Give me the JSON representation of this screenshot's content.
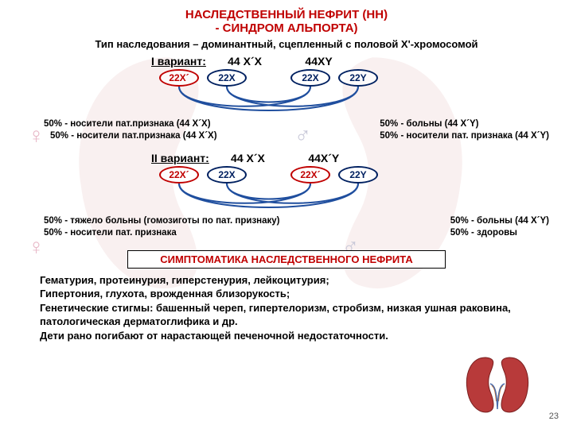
{
  "title1": "НАСЛЕДСТВЕННЫЙ НЕФРИТ (НН)",
  "title2": "- СИНДРОМ АЛЬПОРТА)",
  "subtitle": "Тип наследования – доминантный, сцепленный с половой Х'-хромосомой",
  "pagenum": "23",
  "variant1": {
    "label": "I вариант:",
    "parent1": "44 Х´Х",
    "parent2": "44ХY",
    "gametes": [
      "22Х´",
      "22Х",
      "22Х",
      "22Y"
    ],
    "gamete_colors": [
      "#c00000",
      "#002060",
      "#002060",
      "#002060"
    ],
    "female_line1": "50% -  носители пат.признака (44 Х´Х)",
    "female_line2": "50% -  носители пат.признака (44 Х´Х)",
    "male_line1": "50% - больны (44 Х´Y)",
    "male_line2": "50% - носители пат. признака (44 Х´Y)"
  },
  "variant2": {
    "label": "II вариант:",
    "parent1": "44 Х´Х",
    "parent2": "44Х´Y",
    "gametes": [
      "22Х´",
      "22Х",
      "22Х´",
      "22Y"
    ],
    "gamete_colors": [
      "#c00000",
      "#002060",
      "#c00000",
      "#002060"
    ],
    "female_line1": "50% - тяжело больны (гомозиготы по пат. признаку)",
    "female_line2": "50% - носители пат. признака",
    "male_line1": "50% - больны (44 Х´Y)",
    "male_line2": "50% - здоровы"
  },
  "symptom_banner": "СИМПТОМАТИКА НАСЛЕДСТВЕННОГО НЕФРИТА",
  "symptom_text": "Гематурия, протеинурия, гиперстенурия, лейкоцитурия;\nГипертония, глухота, врожденная близорукость;\nГенетические стигмы: башенный череп, гипертелоризм, стробизм, низкая ушная раковина, патологическая дерматоглифика и др.\nДети рано погибают от нарастающей печеночной недостаточности.",
  "colors": {
    "red": "#c00000",
    "blue": "#002060",
    "kidney_light": "#d9a0a0",
    "kidney_dark": "#a05858",
    "female_icon": "#e8b8c8",
    "male_icon": "#c8c8d8",
    "arc": "#1f4e9e"
  }
}
